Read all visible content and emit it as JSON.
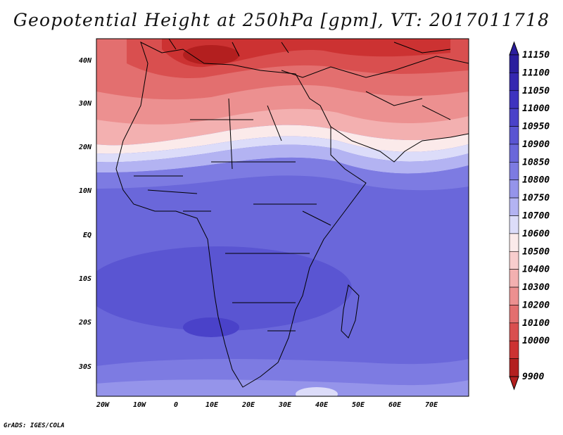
{
  "title": "Geopotential Height at 250hPa [gpm], VT: 2017011718",
  "credit": "GrADS: IGES/COLA",
  "axes": {
    "lon_ticks": [
      "20W",
      "10W",
      "0",
      "10E",
      "20E",
      "30E",
      "40E",
      "50E",
      "60E",
      "70E"
    ],
    "lat_ticks": [
      "40N",
      "30N",
      "20N",
      "10N",
      "EQ",
      "10S",
      "20S",
      "30S"
    ]
  },
  "colorbar": {
    "levels": [
      {
        "label": "11150",
        "color": "#2b1e9e"
      },
      {
        "label": "11100",
        "color": "#3527b0"
      },
      {
        "label": "11050",
        "color": "#3e33bf"
      },
      {
        "label": "11000",
        "color": "#4a42c9"
      },
      {
        "label": "10950",
        "color": "#5a55d2"
      },
      {
        "label": "10900",
        "color": "#6a67da"
      },
      {
        "label": "10850",
        "color": "#7d7be2"
      },
      {
        "label": "10800",
        "color": "#9594ea"
      },
      {
        "label": "10750",
        "color": "#b3b3f2"
      },
      {
        "label": "10700",
        "color": "#dcdcf9"
      },
      {
        "label": "10600",
        "color": "#fbeaea"
      },
      {
        "label": "10500",
        "color": "#f8cdcd"
      },
      {
        "label": "10400",
        "color": "#f3b0b0"
      },
      {
        "label": "10300",
        "color": "#ec9090"
      },
      {
        "label": "10200",
        "color": "#e36f6f"
      },
      {
        "label": "10100",
        "color": "#d94f4f"
      },
      {
        "label": "10000",
        "color": "#cc3232"
      },
      {
        "label": "9900",
        "color": "#b31f1f"
      }
    ]
  }
}
